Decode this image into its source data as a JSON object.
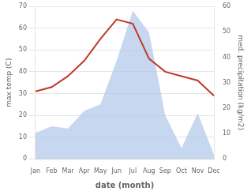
{
  "chart_data": {
    "type": "line",
    "categories": [
      "Jan",
      "Feb",
      "Mar",
      "Apr",
      "May",
      "Jun",
      "Jul",
      "Aug",
      "Sep",
      "Oct",
      "Nov",
      "Dec"
    ],
    "series": [
      {
        "type": "area",
        "color": "#aec6e8",
        "values": [
          12,
          15,
          14,
          22,
          25,
          45,
          68,
          58,
          20,
          5,
          21,
          2
        ]
      },
      {
        "type": "line",
        "color": "#c0392b",
        "values": [
          31,
          33,
          38,
          45,
          55,
          64,
          62,
          46,
          40,
          38,
          36,
          29
        ]
      }
    ],
    "xlabel": "date (month)",
    "ylabel": "max temp (C)",
    "y2label": "med. precipitation (kg/m2)",
    "ylim": [
      0,
      70
    ],
    "yticks": [
      0,
      10,
      20,
      30,
      40,
      50,
      60,
      70
    ],
    "y2lim": [
      0,
      60
    ],
    "y2ticks": [
      0,
      10,
      20,
      30,
      40,
      50,
      60
    ],
    "grid": true
  }
}
